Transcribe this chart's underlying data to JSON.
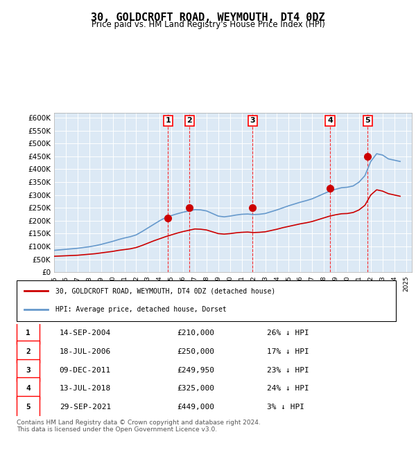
{
  "title": "30, GOLDCROFT ROAD, WEYMOUTH, DT4 0DZ",
  "subtitle": "Price paid vs. HM Land Registry's House Price Index (HPI)",
  "ylabel_ticks": [
    "£0",
    "£50K",
    "£100K",
    "£150K",
    "£200K",
    "£250K",
    "£300K",
    "£350K",
    "£400K",
    "£450K",
    "£500K",
    "£550K",
    "£600K"
  ],
  "ytick_values": [
    0,
    50000,
    100000,
    150000,
    200000,
    250000,
    300000,
    350000,
    400000,
    450000,
    500000,
    550000,
    600000
  ],
  "ylim": [
    0,
    620000
  ],
  "xlim_start": 1995.0,
  "xlim_end": 2025.5,
  "background_color": "#dce9f5",
  "plot_bg": "#dce9f5",
  "sale_dates": [
    2004.71,
    2006.54,
    2011.93,
    2018.53,
    2021.74
  ],
  "sale_prices": [
    210000,
    250000,
    249950,
    325000,
    449000
  ],
  "sale_labels": [
    "1",
    "2",
    "3",
    "4",
    "5"
  ],
  "sale_color": "#cc0000",
  "hpi_color": "#6699cc",
  "legend_sale": "30, GOLDCROFT ROAD, WEYMOUTH, DT4 0DZ (detached house)",
  "legend_hpi": "HPI: Average price, detached house, Dorset",
  "table_rows": [
    [
      "1",
      "14-SEP-2004",
      "£210,000",
      "26% ↓ HPI"
    ],
    [
      "2",
      "18-JUL-2006",
      "£250,000",
      "17% ↓ HPI"
    ],
    [
      "3",
      "09-DEC-2011",
      "£249,950",
      "23% ↓ HPI"
    ],
    [
      "4",
      "13-JUL-2018",
      "£325,000",
      "24% ↓ HPI"
    ],
    [
      "5",
      "29-SEP-2021",
      "£449,000",
      "3% ↓ HPI"
    ]
  ],
  "footer": "Contains HM Land Registry data © Crown copyright and database right 2024.\nThis data is licensed under the Open Government Licence v3.0.",
  "hpi_years": [
    1995,
    1995.5,
    1996,
    1996.5,
    1997,
    1997.5,
    1998,
    1998.5,
    1999,
    1999.5,
    2000,
    2000.5,
    2001,
    2001.5,
    2002,
    2002.5,
    2003,
    2003.5,
    2004,
    2004.5,
    2005,
    2005.5,
    2006,
    2006.5,
    2007,
    2007.5,
    2008,
    2008.5,
    2009,
    2009.5,
    2010,
    2010.5,
    2011,
    2011.5,
    2012,
    2012.5,
    2013,
    2013.5,
    2014,
    2014.5,
    2015,
    2015.5,
    2016,
    2016.5,
    2017,
    2017.5,
    2018,
    2018.5,
    2019,
    2019.5,
    2020,
    2020.5,
    2021,
    2021.5,
    2022,
    2022.5,
    2023,
    2023.5,
    2024,
    2024.5
  ],
  "hpi_values": [
    85000,
    87000,
    89000,
    91000,
    93000,
    96000,
    99000,
    103000,
    108000,
    114000,
    120000,
    127000,
    133000,
    138000,
    145000,
    158000,
    172000,
    186000,
    200000,
    212000,
    220000,
    227000,
    233000,
    238000,
    243000,
    242000,
    238000,
    228000,
    218000,
    215000,
    218000,
    222000,
    225000,
    226000,
    224000,
    225000,
    228000,
    235000,
    242000,
    250000,
    258000,
    265000,
    272000,
    278000,
    285000,
    295000,
    305000,
    315000,
    322000,
    328000,
    330000,
    335000,
    350000,
    375000,
    430000,
    460000,
    455000,
    440000,
    435000,
    430000
  ],
  "house_years": [
    1995,
    1995.5,
    1996,
    1996.5,
    1997,
    1997.5,
    1998,
    1998.5,
    1999,
    1999.5,
    2000,
    2000.5,
    2001,
    2001.5,
    2002,
    2002.5,
    2003,
    2003.5,
    2004,
    2004.5,
    2005,
    2005.5,
    2006,
    2006.5,
    2007,
    2007.5,
    2008,
    2008.5,
    2009,
    2009.5,
    2010,
    2010.5,
    2011,
    2011.5,
    2012,
    2012.5,
    2013,
    2013.5,
    2014,
    2014.5,
    2015,
    2015.5,
    2016,
    2016.5,
    2017,
    2017.5,
    2018,
    2018.5,
    2019,
    2019.5,
    2020,
    2020.5,
    2021,
    2021.5,
    2022,
    2022.5,
    2023,
    2023.5,
    2024,
    2024.5
  ],
  "house_values": [
    62000,
    63000,
    64000,
    65000,
    66000,
    68000,
    70000,
    72000,
    75000,
    78000,
    81000,
    85000,
    88000,
    91000,
    96000,
    104000,
    113000,
    122000,
    130000,
    138000,
    145000,
    152000,
    158000,
    163000,
    168000,
    167000,
    164000,
    157000,
    150000,
    148000,
    150000,
    153000,
    155000,
    156000,
    154000,
    155000,
    157000,
    162000,
    167000,
    173000,
    178000,
    183000,
    188000,
    192000,
    197000,
    204000,
    211000,
    218000,
    223000,
    227000,
    228000,
    232000,
    242000,
    260000,
    300000,
    320000,
    315000,
    305000,
    300000,
    295000
  ]
}
